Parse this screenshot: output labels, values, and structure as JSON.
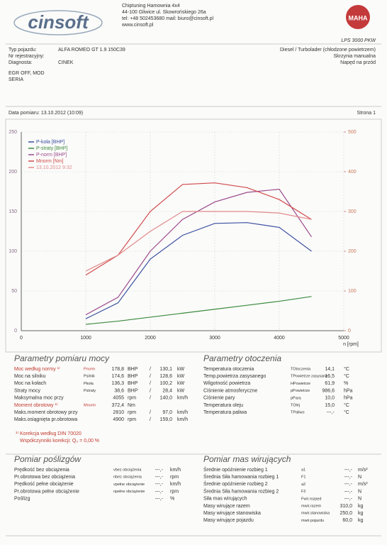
{
  "header": {
    "logo": "cinsoft",
    "company": "Chiptuning Hamownia 4x4",
    "address": "44-100 Gliwice ul. Skowrońskiego 26a",
    "contact": "tel: +48 502453680  mail: biuro@cinsoft.pl",
    "web": "www.cinsoft.pl",
    "brand": "MAHA",
    "model": "LPS 3000 PKW"
  },
  "vehicle": {
    "type_label": "Typ pojazdu:",
    "type": "ALFA ROMEO GT 1.9 150C39",
    "reg_label": "Nr rejestracyjny:",
    "diag_label": "Diagnosta:",
    "diag": "CINEK",
    "engine": "Diesel / Turbolader (chłodzone powietrzem)",
    "gearbox": "Skrzynia manualna",
    "drive": "Napęd na przód",
    "notes": [
      "EGR OFF, MOD",
      "SERIA"
    ]
  },
  "measurement": {
    "date": "Data pomiaru: 13.10.2012 (10:09)",
    "page": "Strona 1"
  },
  "chart": {
    "type": "line",
    "xlabel": "n [rpm]",
    "xlim": [
      0,
      5000
    ],
    "xticks": [
      0,
      1000,
      2000,
      3000,
      4000,
      5000
    ],
    "ylim": [
      0,
      250
    ],
    "yticks": [
      0,
      50,
      100,
      150,
      200,
      250
    ],
    "y2lim": [
      0,
      500
    ],
    "y2ticks": [
      0,
      100,
      200,
      300,
      400,
      500
    ],
    "grid": true,
    "legend": "upper left",
    "x": [
      1000,
      1500,
      2000,
      2500,
      3000,
      3500,
      4000,
      4500
    ],
    "series": [
      {
        "name": "P-koła [BHP]",
        "color": "#3b4fa0",
        "values": [
          15,
          35,
          90,
          120,
          135,
          136,
          130,
          100
        ]
      },
      {
        "name": "P-straty [BHP]",
        "color": "#3c8a3c",
        "values": [
          8,
          12,
          17,
          22,
          27,
          32,
          37,
          43
        ]
      },
      {
        "name": "P-norm [BHP]",
        "color": "#9a4a8a",
        "values": [
          20,
          42,
          100,
          140,
          162,
          174,
          178,
          118
        ]
      },
      {
        "name": "Mnorm [Nm]",
        "color": "#d04a4a",
        "axis": "y2",
        "values": [
          140,
          190,
          300,
          368,
          372,
          360,
          330,
          280
        ]
      },
      {
        "name": "13.10.2012 9:32",
        "color": "#e08a8a",
        "values": [
          75,
          95,
          125,
          150,
          150,
          150,
          148,
          140
        ]
      }
    ]
  },
  "power": {
    "title": "Parametry pomiaru mocy",
    "rows": [
      {
        "label": "Moc według normy ¹⁾",
        "symbol": "Pnorm",
        "color": "#c0392b",
        "cells": [
          "178,8",
          "BHP",
          "/",
          "130,1",
          "kW"
        ]
      },
      {
        "label": "Moc na silniku",
        "symbol": "Psilnik",
        "cells": [
          "174,6",
          "BHP",
          "/",
          "128,6",
          "kW"
        ]
      },
      {
        "label": "Moc na kołach",
        "symbol": "Pkoła",
        "cells": [
          "136,3",
          "BHP",
          "/",
          "100,2",
          "kW"
        ]
      },
      {
        "label": "Straty mocy",
        "symbol": "Pstraty",
        "cells": [
          "38,6",
          "BHP",
          "/",
          "28,4",
          "kW"
        ]
      },
      {
        "label": "Maksymalna moc przy",
        "cells": [
          "4055",
          "rpm",
          "/",
          "140,0",
          "km/h"
        ]
      },
      {
        "label": "Moment obrotowy ¹⁾",
        "symbol": "Mnorm",
        "color": "#c0392b",
        "cells": [
          "372,4",
          "Nm"
        ]
      },
      {
        "label": "Maks.moment obrotowy przy",
        "cells": [
          "2810",
          "rpm",
          "/",
          "97,0",
          "km/h"
        ]
      },
      {
        "label": "Maks.osiągnięta pr.obrotowa",
        "cells": [
          "4900",
          "rpm",
          "/",
          "159,0",
          "km/h"
        ]
      }
    ],
    "notes": [
      "¹⁾ Korekcja według DIN 70020",
      "Współczynniki korekcji: Q₀ = 0,00 %"
    ]
  },
  "environment": {
    "title": "Parametry otoczenia",
    "rows": [
      {
        "label": "Temperatura otoczenia",
        "symbol": "TOtoczenia",
        "cells": [
          "14,1",
          "°C"
        ]
      },
      {
        "label": "Temp.powietrza zasysanego",
        "symbol": "TPowietrze zasysane",
        "cells": [
          "16,5",
          "°C"
        ]
      },
      {
        "label": "Wilgotność powietrza",
        "symbol": "HPowietrze",
        "cells": [
          "61,9",
          "%"
        ]
      },
      {
        "label": "Ciśnienie atmosferyczne",
        "symbol": "pPowietrze",
        "cells": [
          "986,6",
          "hPa"
        ]
      },
      {
        "label": "Ciśnienie pary",
        "symbol": "pPara",
        "cells": [
          "10,0",
          "hPa"
        ]
      },
      {
        "label": "Temperatura oleju",
        "symbol": "TOlej",
        "cells": [
          "15,0",
          "°C"
        ]
      },
      {
        "label": "Temperatura paliwa",
        "symbol": "TPaliwo",
        "cells": [
          "---,-",
          "°C"
        ]
      }
    ]
  },
  "slip": {
    "title": "Pomiar poślizgów",
    "rows": [
      {
        "label": "Prędkość bez obciążenia",
        "symbol": "vbez obciążenia",
        "cells": [
          "---,-",
          "km/h"
        ]
      },
      {
        "label": "Pr.obrotowa bez obciążenia",
        "symbol": "nbez obciążenia",
        "cells": [
          "---,-",
          "rpm"
        ]
      },
      {
        "label": "Prędkość pełne obciążenie",
        "symbol": "vpełne obciążenie",
        "cells": [
          "---,-",
          "km/h"
        ]
      },
      {
        "label": "Pr.obrotowa pełne obciążenie",
        "symbol": "npełne obciążenie",
        "cells": [
          "---,-",
          "rpm"
        ]
      },
      {
        "label": "Poślizg",
        "cells": [
          "---,-",
          "%"
        ]
      }
    ]
  },
  "mass": {
    "title": "Pomiar mas wirujących",
    "rows": [
      {
        "label": "Średnie opóźnienie rozbieg 1",
        "symbol": "a1",
        "cells": [
          "---,-",
          "m/s²"
        ]
      },
      {
        "label": "Średnia Siła hamowania rozbieg 1",
        "symbol": "F1",
        "cells": [
          "---,-",
          "N"
        ]
      },
      {
        "label": "Średnie opóźnienie rozbieg 2",
        "symbol": "a2",
        "cells": [
          "---,-",
          "m/s²"
        ]
      },
      {
        "label": "Średnia Siła hamowania rozbieg 2",
        "symbol": "F2",
        "cells": [
          "---,-",
          "N"
        ]
      },
      {
        "label": "Siła mas wirujących",
        "symbol": "Fwir.rozpęd",
        "cells": [
          "---,-",
          "N"
        ]
      },
      {
        "label": "Masy wirujące razem",
        "symbol": "mwir.razem",
        "cells": [
          "310,0",
          "kg"
        ]
      },
      {
        "label": "Masy wirujące stanowiska",
        "symbol": "mwir.stanowiska",
        "cells": [
          "250,0",
          "kg"
        ]
      },
      {
        "label": "Masy wirujące pojazdu",
        "symbol": "mwir.pojazdu",
        "cells": [
          "60,0",
          "kg"
        ]
      }
    ]
  }
}
